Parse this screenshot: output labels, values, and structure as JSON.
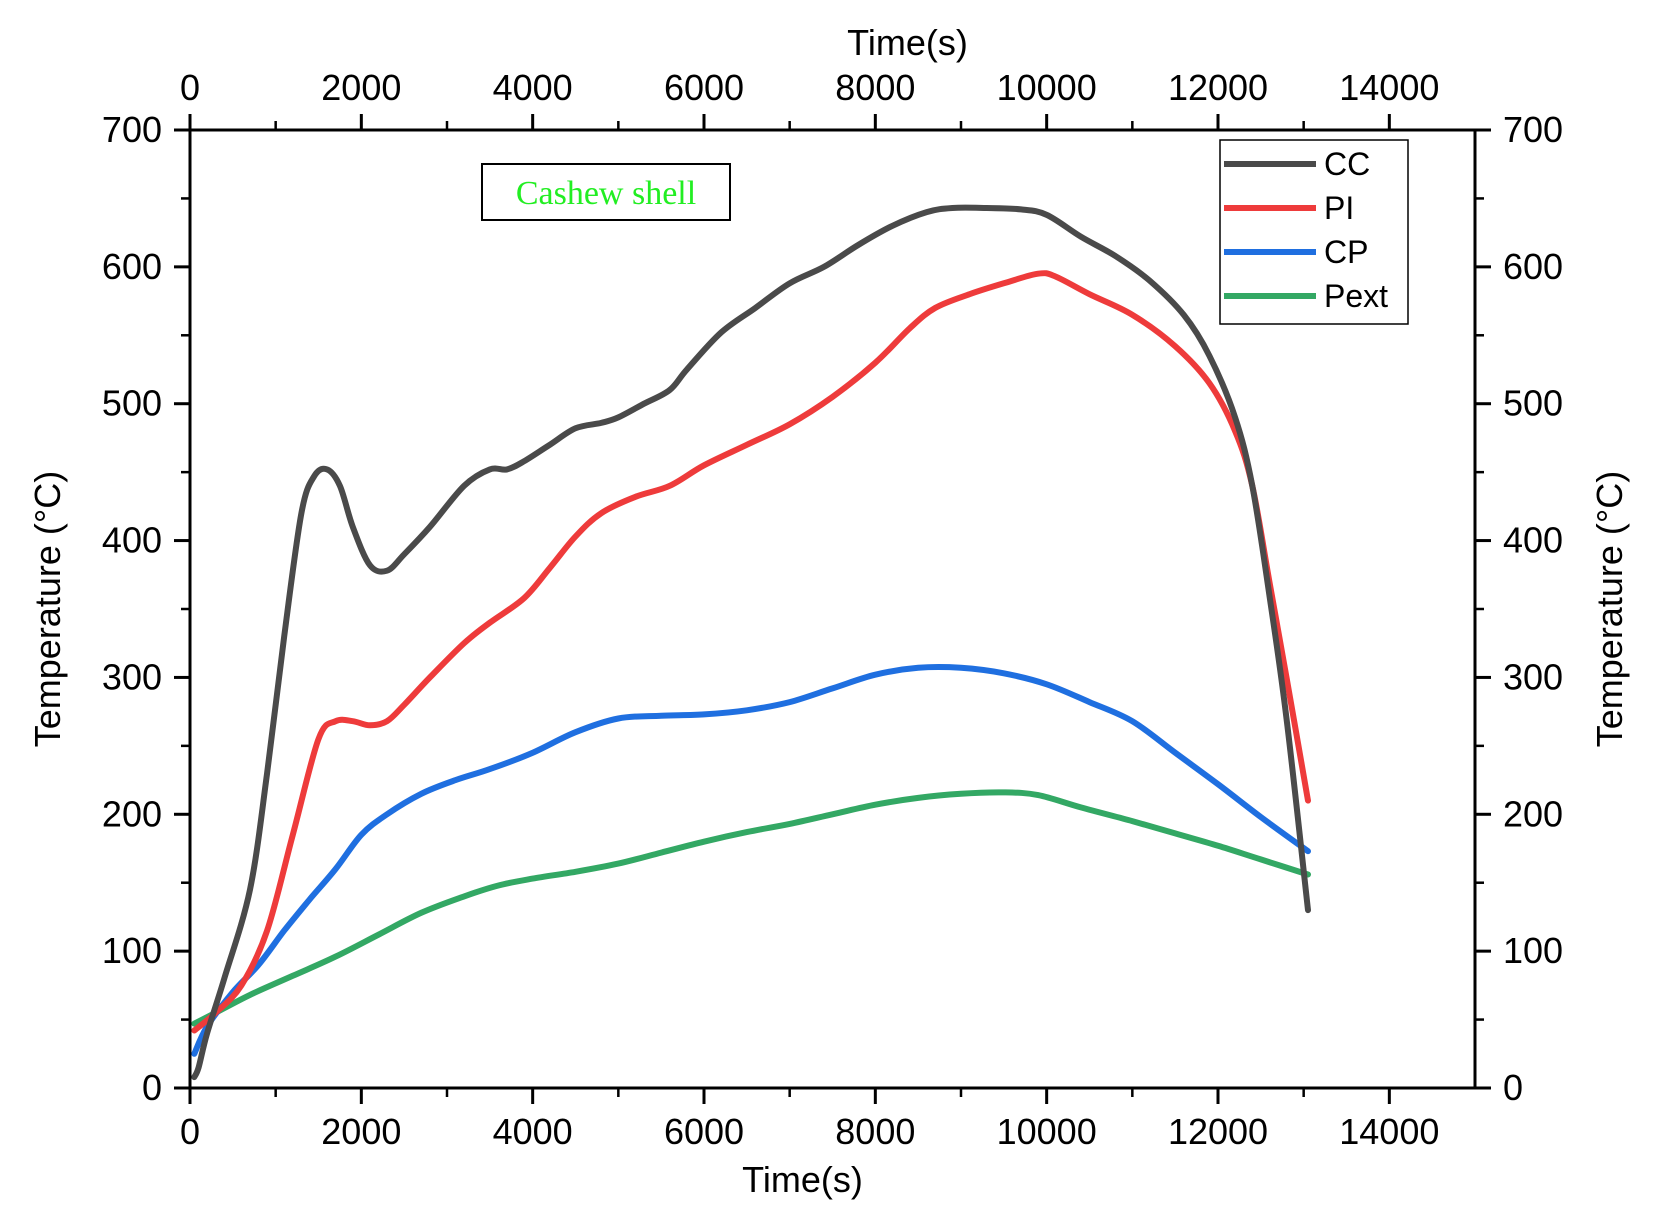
{
  "chart_data": {
    "type": "line",
    "xlabel_bottom": "Time(s)",
    "xlabel_top": "Time(s)",
    "ylabel_left": "Temperature (°C)",
    "ylabel_right": "Temperature (°C)",
    "xlim": [
      0,
      15000
    ],
    "ylim": [
      0,
      700
    ],
    "x_ticks": [
      0,
      2000,
      4000,
      6000,
      8000,
      10000,
      12000,
      14000
    ],
    "y_ticks": [
      0,
      100,
      200,
      300,
      400,
      500,
      600,
      700
    ],
    "grid": false,
    "legend_position": "top-right",
    "annotation": {
      "text": "Cashew shell",
      "color": "#22ee22"
    },
    "series": [
      {
        "name": "CC",
        "color": "#4a4a4a",
        "x": [
          50,
          100,
          200,
          400,
          700,
          900,
          1100,
          1300,
          1450,
          1600,
          1750,
          1900,
          2100,
          2300,
          2500,
          2800,
          3200,
          3500,
          3700,
          3900,
          4200,
          4500,
          4800,
          5000,
          5300,
          5600,
          5800,
          6200,
          6600,
          7000,
          7400,
          7800,
          8200,
          8600,
          8900,
          9300,
          9700,
          10000,
          10400,
          10800,
          11200,
          11600,
          11900,
          12200,
          12400,
          12600,
          12800,
          13050
        ],
        "values": [
          8,
          15,
          40,
          80,
          145,
          230,
          330,
          420,
          447,
          452,
          440,
          410,
          382,
          378,
          390,
          410,
          440,
          452,
          452,
          458,
          470,
          482,
          486,
          490,
          500,
          510,
          525,
          552,
          570,
          588,
          600,
          616,
          630,
          640,
          643,
          643,
          642,
          638,
          622,
          608,
          590,
          565,
          535,
          490,
          440,
          360,
          270,
          130
        ]
      },
      {
        "name": "PI",
        "color": "#ee3b3b",
        "x": [
          50,
          300,
          600,
          900,
          1200,
          1500,
          1700,
          1900,
          2100,
          2300,
          2500,
          2800,
          3200,
          3500,
          3900,
          4200,
          4500,
          4800,
          5200,
          5600,
          6000,
          6500,
          7000,
          7500,
          8000,
          8400,
          8700,
          9100,
          9500,
          9900,
          10100,
          10500,
          11000,
          11500,
          11900,
          12200,
          12400,
          12600,
          12800,
          13050
        ],
        "values": [
          42,
          55,
          75,
          115,
          185,
          255,
          268,
          268,
          265,
          268,
          280,
          300,
          325,
          340,
          358,
          380,
          403,
          420,
          432,
          440,
          455,
          470,
          485,
          505,
          530,
          555,
          570,
          580,
          588,
          595,
          593,
          580,
          565,
          542,
          515,
          480,
          440,
          370,
          300,
          210
        ]
      },
      {
        "name": "CP",
        "color": "#1f6fe0",
        "x": [
          50,
          200,
          500,
          800,
          1100,
          1400,
          1700,
          2000,
          2300,
          2700,
          3100,
          3500,
          4000,
          4500,
          5000,
          5500,
          6000,
          6500,
          7000,
          7500,
          8000,
          8500,
          9000,
          9500,
          10000,
          10500,
          11000,
          11500,
          12000,
          12500,
          13050
        ],
        "values": [
          25,
          45,
          70,
          90,
          115,
          138,
          160,
          185,
          200,
          215,
          225,
          233,
          245,
          260,
          270,
          272,
          273,
          276,
          282,
          292,
          302,
          307,
          307,
          303,
          295,
          282,
          268,
          245,
          222,
          198,
          173
        ]
      },
      {
        "name": "Pext",
        "color": "#33a864",
        "x": [
          50,
          300,
          700,
          1200,
          1700,
          2200,
          2700,
          3200,
          3600,
          4000,
          4500,
          5000,
          5500,
          6000,
          6500,
          7000,
          7500,
          8000,
          8500,
          9000,
          9500,
          9900,
          10400,
          11000,
          11500,
          12000,
          12500,
          13050
        ],
        "values": [
          47,
          55,
          68,
          82,
          96,
          112,
          128,
          140,
          148,
          153,
          158,
          164,
          172,
          180,
          187,
          193,
          200,
          207,
          212,
          215,
          216,
          214,
          205,
          195,
          186,
          177,
          167,
          156
        ]
      }
    ]
  }
}
